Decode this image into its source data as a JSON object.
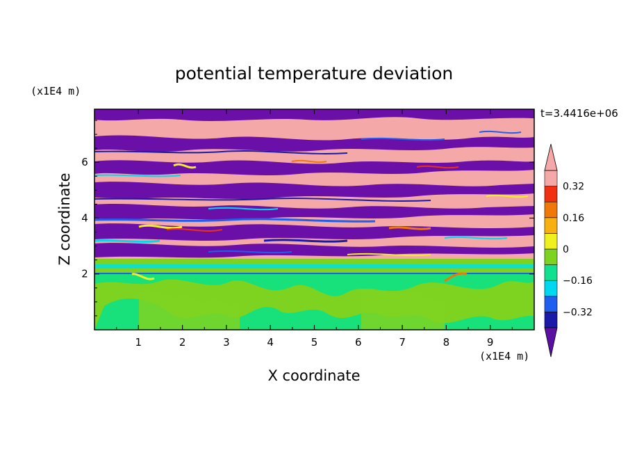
{
  "chart_data": {
    "type": "heatmap",
    "title": "potential temperature deviation",
    "xlabel": "X coordinate",
    "ylabel": "Z coordinate",
    "x_unit": "(x1E4 m)",
    "y_unit": "(x1E4 m)",
    "time_label": "t=3.4416e+06",
    "xlim": [
      0,
      10
    ],
    "ylim": [
      0,
      7.9
    ],
    "x_ticks": [
      "1",
      "2",
      "3",
      "4",
      "5",
      "6",
      "7",
      "8",
      "9"
    ],
    "y_ticks": [
      "2",
      "4",
      "6"
    ],
    "colorbar": {
      "levels": [
        -0.4,
        -0.32,
        -0.24,
        -0.16,
        -0.08,
        0,
        0.08,
        0.16,
        0.24,
        0.32,
        0.4
      ],
      "labels": [
        "0.32",
        "0.16",
        "0",
        "-0.16",
        "-0.32"
      ],
      "colors_low_to_high": [
        "#5a10a0",
        "#1a1aa8",
        "#1f5ff0",
        "#00d8f0",
        "#10e090",
        "#7ed321",
        "#f0f020",
        "#f8b010",
        "#f07808",
        "#f03010",
        "#f5a8a8"
      ],
      "extend": "both"
    }
  },
  "colors": {
    "pink": "#f5a8a8",
    "purple": "#6a10a8",
    "green": "#7ed321",
    "teal_green": "#18e07a"
  }
}
